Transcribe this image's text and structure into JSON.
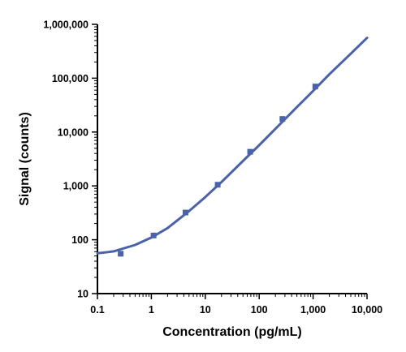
{
  "chart_data": {
    "type": "scatter",
    "title": "",
    "xlabel": "Concentration (pg/mL)",
    "ylabel": "Signal (counts)",
    "x_scale": "log",
    "y_scale": "log",
    "xlim": [
      0.1,
      10000
    ],
    "ylim": [
      10,
      1000000
    ],
    "x_ticks": [
      0.1,
      1,
      10,
      100,
      1000,
      10000
    ],
    "x_tick_labels": [
      "0.1",
      "1",
      "10",
      "100",
      "1,000",
      "10,000"
    ],
    "y_ticks": [
      10,
      100,
      1000,
      10000,
      100000,
      1000000
    ],
    "y_tick_labels": [
      "10",
      "100",
      "1,000",
      "10,000",
      "100,000",
      "1,000,000"
    ],
    "grid": false,
    "legend": "none",
    "colors": {
      "series": "#4a62ac",
      "axis": "#000000"
    },
    "series": [
      {
        "kind": "points",
        "marker": "square",
        "x": [
          0.27,
          1.1,
          4.3,
          17,
          68,
          270,
          1100
        ],
        "y": [
          55,
          120,
          320,
          1050,
          4300,
          17500,
          70000
        ]
      },
      {
        "kind": "fitted-curve",
        "x": [
          0.1,
          0.2,
          0.5,
          1,
          2,
          5,
          10,
          20,
          50,
          100,
          200,
          500,
          1000,
          2000,
          5000,
          10000
        ],
        "y": [
          56,
          61,
          80,
          110,
          165,
          340,
          620,
          1180,
          2900,
          5700,
          11500,
          29000,
          58000,
          118000,
          285000,
          560000
        ]
      }
    ]
  }
}
